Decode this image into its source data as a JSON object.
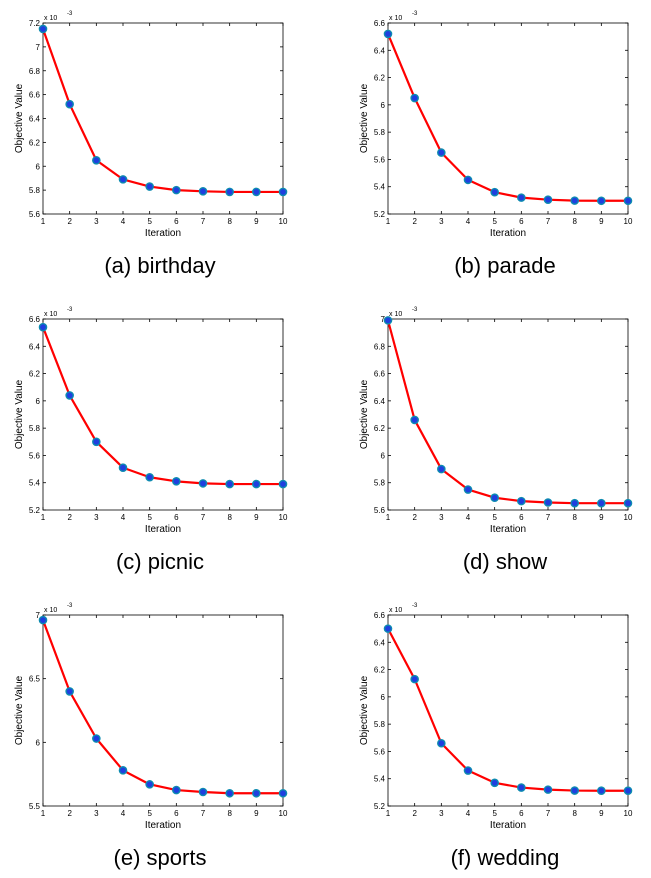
{
  "figure": {
    "line_color": "#ff0000",
    "marker_fill": "#1f3fdf",
    "marker_edge": "#0d8bb0",
    "axis_color": "#000000"
  },
  "chart_data": [
    {
      "type": "line",
      "caption": "(a) birthday",
      "xlabel": "Iteration",
      "ylabel": "Objective Value",
      "exponent_label": "x 10",
      "exponent_power": "-3",
      "xlim": [
        1,
        10
      ],
      "ylim": [
        5.6,
        7.2
      ],
      "xticks": [
        "1",
        "2",
        "3",
        "4",
        "5",
        "6",
        "7",
        "8",
        "9",
        "10"
      ],
      "yticks": [
        "5.6",
        "5.8",
        "6",
        "6.2",
        "6.4",
        "6.6",
        "6.8",
        "7",
        "7.2"
      ],
      "ytick_values": [
        5.6,
        5.8,
        6.0,
        6.2,
        6.4,
        6.6,
        6.8,
        7.0,
        7.2
      ],
      "x": [
        1,
        2,
        3,
        4,
        5,
        6,
        7,
        8,
        9,
        10
      ],
      "series": [
        {
          "values": [
            7.15,
            6.52,
            6.05,
            5.89,
            5.83,
            5.8,
            5.79,
            5.785,
            5.785,
            5.785
          ]
        }
      ]
    },
    {
      "type": "line",
      "caption": "(b) parade",
      "xlabel": "Iteration",
      "ylabel": "Objective Value",
      "exponent_label": "x 10",
      "exponent_power": "-3",
      "xlim": [
        1,
        10
      ],
      "ylim": [
        5.2,
        6.6
      ],
      "xticks": [
        "1",
        "2",
        "3",
        "4",
        "5",
        "6",
        "7",
        "8",
        "9",
        "10"
      ],
      "yticks": [
        "5.2",
        "5.4",
        "5.6",
        "5.8",
        "6",
        "6.2",
        "6.4",
        "6.6"
      ],
      "ytick_values": [
        5.2,
        5.4,
        5.6,
        5.8,
        6.0,
        6.2,
        6.4,
        6.6
      ],
      "x": [
        1,
        2,
        3,
        4,
        5,
        6,
        7,
        8,
        9,
        10
      ],
      "series": [
        {
          "values": [
            6.52,
            6.05,
            5.65,
            5.45,
            5.36,
            5.32,
            5.305,
            5.298,
            5.297,
            5.297
          ]
        }
      ]
    },
    {
      "type": "line",
      "caption": "(c) picnic",
      "xlabel": "Iteration",
      "ylabel": "Objective Value",
      "exponent_label": "x 10",
      "exponent_power": "-3",
      "xlim": [
        1,
        10
      ],
      "ylim": [
        5.2,
        6.6
      ],
      "xticks": [
        "1",
        "2",
        "3",
        "4",
        "5",
        "6",
        "7",
        "8",
        "9",
        "10"
      ],
      "yticks": [
        "5.2",
        "5.4",
        "5.6",
        "5.8",
        "6",
        "6.2",
        "6.4",
        "6.6"
      ],
      "ytick_values": [
        5.2,
        5.4,
        5.6,
        5.8,
        6.0,
        6.2,
        6.4,
        6.6
      ],
      "x": [
        1,
        2,
        3,
        4,
        5,
        6,
        7,
        8,
        9,
        10
      ],
      "series": [
        {
          "values": [
            6.54,
            6.04,
            5.7,
            5.51,
            5.44,
            5.41,
            5.395,
            5.39,
            5.39,
            5.39
          ]
        }
      ]
    },
    {
      "type": "line",
      "caption": "(d) show",
      "xlabel": "Iteration",
      "ylabel": "Objective Value",
      "exponent_label": "x 10",
      "exponent_power": "-3",
      "xlim": [
        1,
        10
      ],
      "ylim": [
        5.6,
        7.0
      ],
      "xticks": [
        "1",
        "2",
        "3",
        "4",
        "5",
        "6",
        "7",
        "8",
        "9",
        "10"
      ],
      "yticks": [
        "5.6",
        "5.8",
        "6",
        "6.2",
        "6.4",
        "6.6",
        "6.8",
        "7"
      ],
      "ytick_values": [
        5.6,
        5.8,
        6.0,
        6.2,
        6.4,
        6.6,
        6.8,
        7.0
      ],
      "x": [
        1,
        2,
        3,
        4,
        5,
        6,
        7,
        8,
        9,
        10
      ],
      "series": [
        {
          "values": [
            6.99,
            6.26,
            5.9,
            5.75,
            5.69,
            5.665,
            5.655,
            5.65,
            5.65,
            5.65
          ]
        }
      ]
    },
    {
      "type": "line",
      "caption": "(e) sports",
      "xlabel": "Iteration",
      "ylabel": "Objective Value",
      "exponent_label": "x 10",
      "exponent_power": "-3",
      "xlim": [
        1,
        10
      ],
      "ylim": [
        5.5,
        7.0
      ],
      "xticks": [
        "1",
        "2",
        "3",
        "4",
        "5",
        "6",
        "7",
        "8",
        "9",
        "10"
      ],
      "yticks": [
        "5.5",
        "6",
        "6.5",
        "7"
      ],
      "ytick_values": [
        5.5,
        6.0,
        6.5,
        7.0
      ],
      "x": [
        1,
        2,
        3,
        4,
        5,
        6,
        7,
        8,
        9,
        10
      ],
      "series": [
        {
          "values": [
            6.96,
            6.4,
            6.03,
            5.78,
            5.67,
            5.625,
            5.61,
            5.6,
            5.6,
            5.6
          ]
        }
      ]
    },
    {
      "type": "line",
      "caption": "(f) wedding",
      "xlabel": "Iteration",
      "ylabel": "Objective Value",
      "exponent_label": "x 10",
      "exponent_power": "-3",
      "xlim": [
        1,
        10
      ],
      "ylim": [
        5.2,
        6.6
      ],
      "xticks": [
        "1",
        "2",
        "3",
        "4",
        "5",
        "6",
        "7",
        "8",
        "9",
        "10"
      ],
      "yticks": [
        "5.2",
        "5.4",
        "5.6",
        "5.8",
        "6",
        "6.2",
        "6.4",
        "6.6"
      ],
      "ytick_values": [
        5.2,
        5.4,
        5.6,
        5.8,
        6.0,
        6.2,
        6.4,
        6.6
      ],
      "x": [
        1,
        2,
        3,
        4,
        5,
        6,
        7,
        8,
        9,
        10
      ],
      "series": [
        {
          "values": [
            6.5,
            6.13,
            5.66,
            5.46,
            5.37,
            5.335,
            5.32,
            5.313,
            5.312,
            5.312
          ]
        }
      ]
    }
  ]
}
